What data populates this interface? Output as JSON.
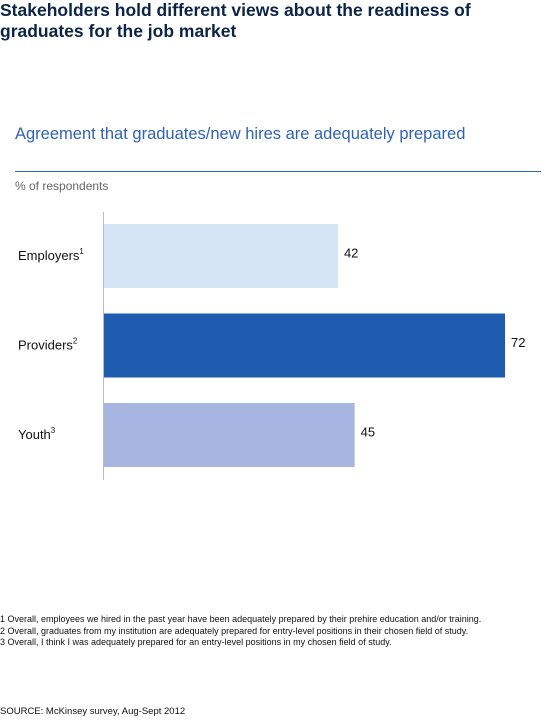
{
  "chart_data": {
    "type": "bar",
    "orientation": "horizontal",
    "title": "Stakeholders hold different views about the readiness of graduates for the job market",
    "subtitle": "Agreement that graduates/new hires are adequately prepared",
    "unit_label": "% of respondents",
    "categories": [
      "Employers",
      "Providers",
      "Youth"
    ],
    "category_notes": [
      "1",
      "2",
      "3"
    ],
    "values": [
      42,
      72,
      45
    ],
    "colors": [
      "#d5e5f5",
      "#1f5cb0",
      "#a7b6e0"
    ],
    "footnotes": [
      "1 Overall, employees we hired in the past year have been adequately prepared by their prehire education and/or training.",
      "2 Overall, graduates from my institution are adequately prepared for entry-level positions in their chosen field of study.",
      "3 Overall, I think I was adequately prepared for an entry-level positions in my chosen field of study."
    ],
    "source": "SOURCE: McKinsey survey, Aug-Sept 2012"
  }
}
